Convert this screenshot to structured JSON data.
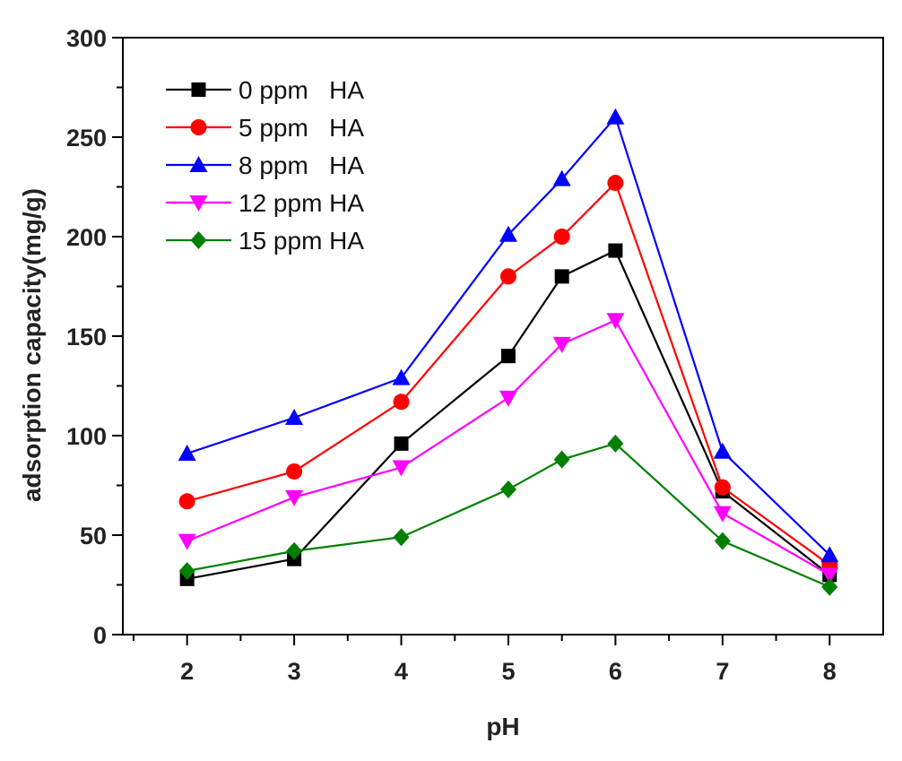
{
  "chart_data": {
    "type": "line",
    "title": "",
    "xlabel": "pH",
    "ylabel": "adsorption capacity(mg/g)",
    "xlim": [
      1.4,
      8.5
    ],
    "ylim": [
      0,
      300
    ],
    "xticks": [
      2,
      3,
      4,
      5,
      6,
      7,
      8
    ],
    "yticks": [
      0,
      50,
      100,
      150,
      200,
      250,
      300
    ],
    "grid": false,
    "legend_position": "top-left",
    "x": [
      2,
      3,
      4,
      5,
      5.5,
      6,
      7,
      8
    ],
    "series": [
      {
        "name": "0 ppm   HA",
        "color": "#000000",
        "marker": "square",
        "values": [
          28,
          38,
          96,
          140,
          180,
          193,
          72,
          30
        ]
      },
      {
        "name": "5 ppm   HA",
        "color": "#ff0000",
        "marker": "circle",
        "values": [
          67,
          82,
          117,
          180,
          200,
          227,
          74,
          35
        ]
      },
      {
        "name": "8 ppm   HA",
        "color": "#0000ff",
        "marker": "triangle-up",
        "values": [
          91,
          109,
          129,
          201,
          229,
          260,
          92,
          40
        ]
      },
      {
        "name": "12 ppm HA",
        "color": "#ff00ff",
        "marker": "triangle-down",
        "values": [
          47,
          69,
          84,
          119,
          146,
          158,
          61,
          30
        ]
      },
      {
        "name": "15 ppm HA",
        "color": "#008000",
        "marker": "diamond",
        "values": [
          32,
          42,
          49,
          73,
          88,
          96,
          47,
          24
        ]
      }
    ]
  }
}
